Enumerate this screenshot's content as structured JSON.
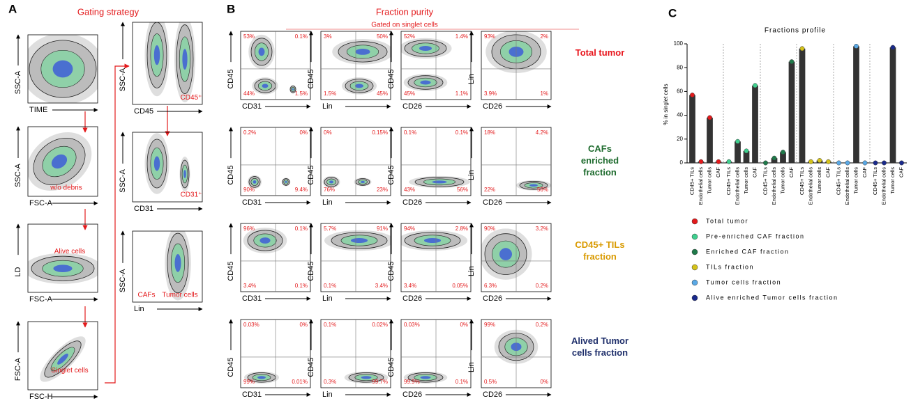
{
  "panel_a": {
    "label": "A",
    "title": "Gating strategy",
    "plots": [
      {
        "x_label": "TIME",
        "y_label": "SSC-A",
        "gates": []
      },
      {
        "x_label": "FSC-A",
        "y_label": "SSC-A",
        "gates": [
          "w/o debris"
        ]
      },
      {
        "x_label": "FSC-A",
        "y_label": "LD",
        "gates": [
          "Alive cells"
        ]
      },
      {
        "x_label": "FSC-H",
        "y_label": "FSC-A",
        "gates": [
          "Singlet cells"
        ]
      },
      {
        "x_label": "CD45",
        "y_label": "SSC-A",
        "gates": [
          "CD45⁺"
        ]
      },
      {
        "x_label": "CD31",
        "y_label": "SSC-A",
        "gates": [
          "CD31⁺"
        ]
      },
      {
        "x_label": "Lin",
        "y_label": "SSC-A",
        "gates": [
          "CAFs",
          "Tumor cells"
        ]
      }
    ]
  },
  "panel_b": {
    "label": "B",
    "title": "Fraction purity",
    "subtitle": "Gated on singlet cells",
    "rows": [
      {
        "name": "Total tumor",
        "color": "#e8141b",
        "plots": [
          {
            "x_label": "CD31",
            "y_label": "CD45",
            "quadrants": [
              "53%",
              "0.1%",
              "44%",
              "1.5%"
            ]
          },
          {
            "x_label": "Lin",
            "y_label": "CD45",
            "quadrants": [
              "3%",
              "50%",
              "1.5%",
              "45%"
            ]
          },
          {
            "x_label": "CD26",
            "y_label": "CD45",
            "quadrants": [
              "52%",
              "1.4%",
              "45%",
              "1.1%"
            ]
          },
          {
            "x_label": "CD26",
            "y_label": "Lin",
            "quadrants": [
              "93%",
              "2%",
              "3.9%",
              "1%"
            ]
          }
        ]
      },
      {
        "name": "CAFs enriched fraction",
        "color": "#1e6b2e",
        "plots": [
          {
            "x_label": "CD31",
            "y_label": "CD45",
            "quadrants": [
              "0.2%",
              "0%",
              "90%",
              "9.4%"
            ]
          },
          {
            "x_label": "Lin",
            "y_label": "CD45",
            "quadrants": [
              "0%",
              "0.15%",
              "76%",
              "23%"
            ]
          },
          {
            "x_label": "CD26",
            "y_label": "CD45",
            "quadrants": [
              "0.1%",
              "0.1%",
              "43%",
              "56%"
            ]
          },
          {
            "x_label": "CD26",
            "y_label": "Lin",
            "quadrants": [
              "18%",
              "4.2%",
              "22%",
              "56%"
            ]
          }
        ]
      },
      {
        "name": "CD45+ TILs fraction",
        "color": "#d99a00",
        "plots": [
          {
            "x_label": "CD31",
            "y_label": "CD45",
            "quadrants": [
              "96%",
              "0.1%",
              "3.4%",
              "0.1%"
            ]
          },
          {
            "x_label": "Lin",
            "y_label": "CD45",
            "quadrants": [
              "5.7%",
              "91%",
              "0.1%",
              "3.4%"
            ]
          },
          {
            "x_label": "CD26",
            "y_label": "CD45",
            "quadrants": [
              "94%",
              "2.8%",
              "3.4%",
              "0.05%"
            ]
          },
          {
            "x_label": "CD26",
            "y_label": "Lin",
            "quadrants": [
              "90%",
              "3.2%",
              "6.3%",
              "0.2%"
            ]
          }
        ]
      },
      {
        "name": "Alived Tumor cells fraction",
        "color": "#1f2f6b",
        "plots": [
          {
            "x_label": "CD31",
            "y_label": "CD45",
            "quadrants": [
              "0.03%",
              "0%",
              "99%",
              "0.01%"
            ]
          },
          {
            "x_label": "Lin",
            "y_label": "CD45",
            "quadrants": [
              "0.1%",
              "0.02%",
              "0.3%",
              "99.7%"
            ]
          },
          {
            "x_label": "CD26",
            "y_label": "CD45",
            "quadrants": [
              "0.03%",
              "0%",
              "99.9%",
              "0.1%"
            ]
          },
          {
            "x_label": "CD26",
            "y_label": "Lin",
            "quadrants": [
              "99%",
              "0.2%",
              "0.5%",
              "0%"
            ]
          }
        ]
      }
    ]
  },
  "chart_data": {
    "type": "bar",
    "label": "C",
    "title": "Fractions profile",
    "y_label": "% in singlet cells",
    "categories": [
      "CD45+ TILs",
      "Endothelial cells",
      "Tumor cells",
      "CAF"
    ],
    "bar_color": "#333333",
    "series": [
      {
        "name": "Total tumor",
        "color": "#e31a1c",
        "values": [
          57,
          1,
          38,
          1
        ]
      },
      {
        "name": "Pre-enriched CAF fraction",
        "color": "#3fcf8e",
        "values": [
          1,
          18,
          10,
          65
        ]
      },
      {
        "name": "Enriched CAF fraction",
        "color": "#1f7a4a",
        "values": [
          0,
          4,
          9,
          85
        ]
      },
      {
        "name": "TILs fraction",
        "color": "#d4c21a",
        "values": [
          96,
          1,
          2,
          1
        ]
      },
      {
        "name": "Tumor cells fraction",
        "color": "#5aa9e6",
        "values": [
          0,
          0,
          98,
          0
        ]
      },
      {
        "name": "Alive enriched Tumor cells fraction",
        "color": "#1a2a8c",
        "values": [
          0,
          0,
          97,
          0
        ]
      }
    ],
    "ylim": [
      0,
      100
    ],
    "yticks": [
      0,
      20,
      40,
      60,
      80,
      100
    ]
  }
}
